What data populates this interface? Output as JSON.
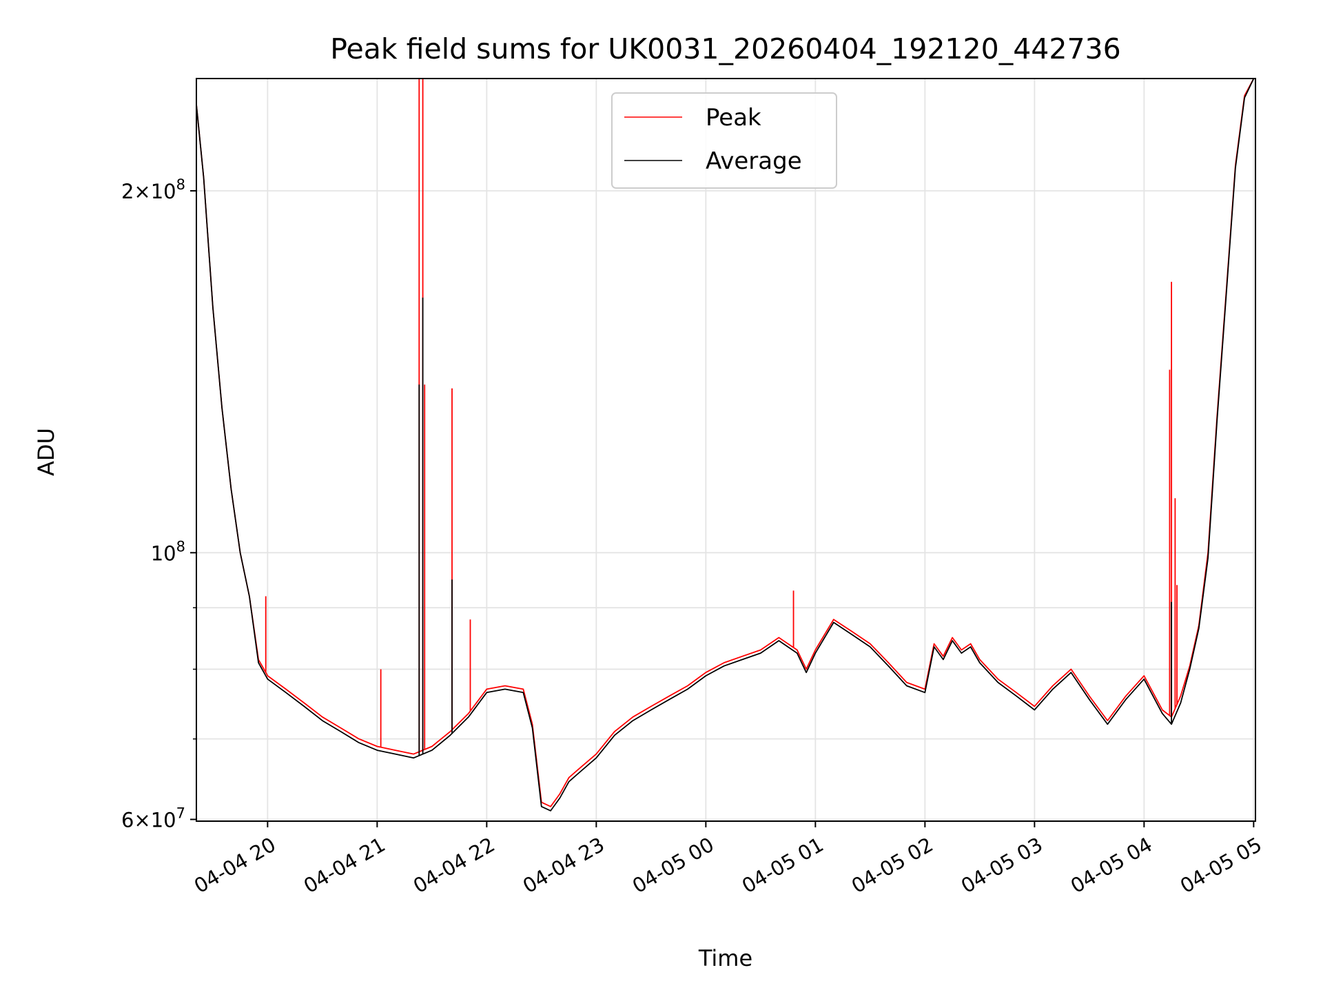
{
  "chart_data": {
    "type": "line",
    "title": "Peak field sums for UK0031_20260404_192120_442736",
    "xlabel": "Time",
    "ylabel": "ADU",
    "x_scale": "time",
    "y_scale": "log",
    "xlim": [
      "04-04 19:21",
      "04-05 05:01"
    ],
    "ylim": [
      59800000,
      248000000
    ],
    "grid": true,
    "legend_position": "top-center",
    "x_ticks": [
      "04-04 20",
      "04-04 21",
      "04-04 22",
      "04-04 23",
      "04-05 00",
      "04-05 01",
      "04-05 02",
      "04-05 03",
      "04-05 04",
      "04-05 05"
    ],
    "y_ticks": [
      {
        "value": 60000000,
        "mantissa": "6",
        "exp": "7"
      },
      {
        "value": 100000000,
        "mantissa": "",
        "exp": "8"
      },
      {
        "value": 200000000,
        "mantissa": "2",
        "exp": "8"
      }
    ],
    "y_minor_ticks": [
      70000000,
      80000000,
      90000000
    ],
    "x": [
      "19:21",
      "19:25",
      "19:30",
      "19:35",
      "19:40",
      "19:45",
      "19:50",
      "19:55",
      "20:00",
      "20:10",
      "20:20",
      "20:30",
      "20:40",
      "20:50",
      "21:00",
      "21:10",
      "21:20",
      "21:30",
      "21:40",
      "21:50",
      "22:00",
      "22:10",
      "22:20",
      "22:25",
      "22:30",
      "22:35",
      "22:40",
      "22:45",
      "22:50",
      "23:00",
      "23:10",
      "23:20",
      "23:30",
      "23:40",
      "23:50",
      "00:00",
      "00:10",
      "00:20",
      "00:30",
      "00:40",
      "00:50",
      "00:55",
      "01:00",
      "01:10",
      "01:20",
      "01:30",
      "01:40",
      "01:50",
      "02:00",
      "02:05",
      "02:10",
      "02:15",
      "02:20",
      "02:25",
      "02:30",
      "02:40",
      "02:50",
      "03:00",
      "03:10",
      "03:20",
      "03:30",
      "03:40",
      "03:50",
      "04:00",
      "04:10",
      "04:15",
      "04:20",
      "04:25",
      "04:30",
      "04:35",
      "04:40",
      "04:45",
      "04:50",
      "04:55",
      "05:00"
    ],
    "series": [
      {
        "name": "Peak",
        "color": "#ff0000",
        "values": [
          236000000,
          205000000,
          160000000,
          132000000,
          113000000,
          100000000,
          92000000,
          81500000,
          79000000,
          77000000,
          75000000,
          73000000,
          71500000,
          70000000,
          69000000,
          68500000,
          68000000,
          69000000,
          71000000,
          73500000,
          77000000,
          77500000,
          77000000,
          72000000,
          62000000,
          61500000,
          63000000,
          65000000,
          66000000,
          68000000,
          71000000,
          73000000,
          74500000,
          76000000,
          77500000,
          79500000,
          81000000,
          82000000,
          83000000,
          85000000,
          83000000,
          80000000,
          83000000,
          88000000,
          86000000,
          84000000,
          81000000,
          78000000,
          77000000,
          84000000,
          82000000,
          85000000,
          83000000,
          84000000,
          81500000,
          78500000,
          76500000,
          74500000,
          77500000,
          80000000,
          76000000,
          72500000,
          76000000,
          79000000,
          74000000,
          73000000,
          76000000,
          80500000,
          87000000,
          100000000,
          130000000,
          165000000,
          210000000,
          240000000,
          248000000
        ]
      },
      {
        "name": "Average",
        "color": "#000000",
        "values": [
          236000000,
          205000000,
          160000000,
          132000000,
          113000000,
          100000000,
          92000000,
          81000000,
          78500000,
          76500000,
          74500000,
          72500000,
          71000000,
          69500000,
          68500000,
          68000000,
          67500000,
          68500000,
          70500000,
          73000000,
          76500000,
          77000000,
          76500000,
          71500000,
          61500000,
          61000000,
          62500000,
          64500000,
          65500000,
          67500000,
          70500000,
          72500000,
          74000000,
          75500000,
          77000000,
          79000000,
          80500000,
          81500000,
          82500000,
          84500000,
          82500000,
          79500000,
          82500000,
          87500000,
          85500000,
          83500000,
          80500000,
          77500000,
          76500000,
          83500000,
          81500000,
          84500000,
          82500000,
          83500000,
          81000000,
          78000000,
          76000000,
          74000000,
          77000000,
          79500000,
          75500000,
          72000000,
          75500000,
          78500000,
          73500000,
          72000000,
          75000000,
          80000000,
          86500000,
          99000000,
          129000000,
          164000000,
          209000000,
          239000000,
          248000000
        ]
      }
    ],
    "spikes": [
      {
        "series": "Peak",
        "x": "19:59",
        "value": 92000000
      },
      {
        "series": "Peak",
        "x": "21:02",
        "value": 80000000
      },
      {
        "series": "Peak",
        "x": "21:23",
        "value": 248000000
      },
      {
        "series": "Peak",
        "x": "21:25",
        "value": 248000000
      },
      {
        "series": "Peak",
        "x": "21:26",
        "value": 138000000
      },
      {
        "series": "Peak",
        "x": "21:41",
        "value": 137000000
      },
      {
        "series": "Peak",
        "x": "21:51",
        "value": 88000000
      },
      {
        "series": "Peak",
        "x": "00:48",
        "value": 93000000
      },
      {
        "series": "Peak",
        "x": "04:14",
        "value": 142000000
      },
      {
        "series": "Peak",
        "x": "04:15",
        "value": 168000000
      },
      {
        "series": "Peak",
        "x": "04:17",
        "value": 111000000
      },
      {
        "series": "Peak",
        "x": "04:18",
        "value": 94000000
      },
      {
        "series": "Average",
        "x": "21:23",
        "value": 138000000
      },
      {
        "series": "Average",
        "x": "21:25",
        "value": 163000000
      },
      {
        "series": "Average",
        "x": "21:41",
        "value": 95000000
      },
      {
        "series": "Average",
        "x": "04:15",
        "value": 91000000
      }
    ]
  }
}
